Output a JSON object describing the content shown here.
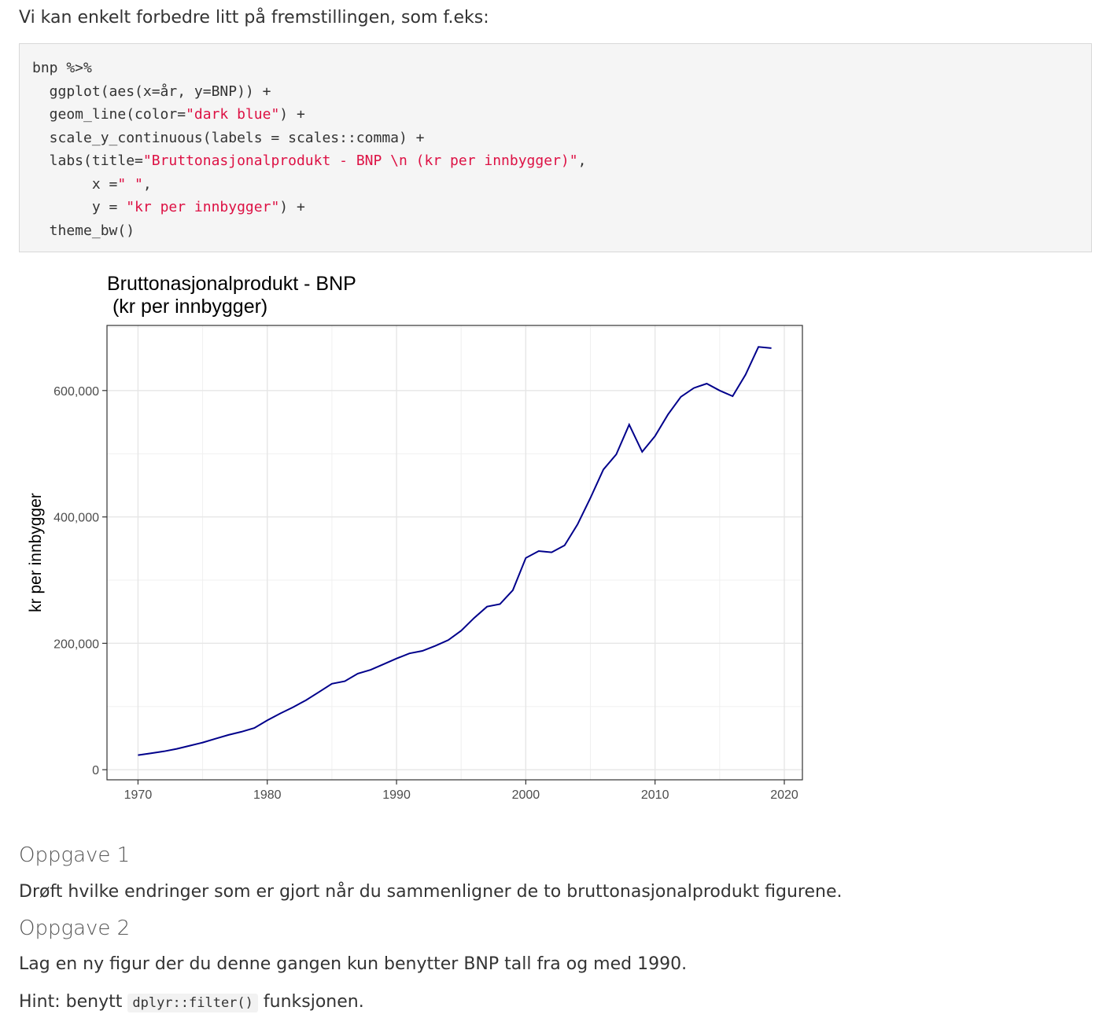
{
  "intro_text": "Vi kan enkelt forbedre litt på fremstillingen, som f.eks:",
  "code": {
    "lines": [
      [
        {
          "t": "bnp %>%",
          "s": false
        }
      ],
      [
        {
          "t": "  ggplot(aes(x=år, y=BNP)) +",
          "s": false
        }
      ],
      [
        {
          "t": "  geom_line(color=",
          "s": false
        },
        {
          "t": "\"dark blue\"",
          "s": true
        },
        {
          "t": ") +",
          "s": false
        }
      ],
      [
        {
          "t": "  scale_y_continuous(labels = scales::comma) +",
          "s": false
        }
      ],
      [
        {
          "t": "  labs(title=",
          "s": false
        },
        {
          "t": "\"Bruttonasjonalprodukt - BNP \\n (kr per innbygger)\"",
          "s": true
        },
        {
          "t": ",",
          "s": false
        }
      ],
      [
        {
          "t": "       x =",
          "s": false
        },
        {
          "t": "\" \"",
          "s": true
        },
        {
          "t": ",",
          "s": false
        }
      ],
      [
        {
          "t": "       y = ",
          "s": false
        },
        {
          "t": "\"kr per innbygger\"",
          "s": true
        },
        {
          "t": ") +",
          "s": false
        }
      ],
      [
        {
          "t": "  theme_bw()",
          "s": false
        }
      ]
    ]
  },
  "chart_data": {
    "type": "line",
    "title": "Bruttonasjonalprodukt - BNP",
    "subtitle": " (kr per innbygger)",
    "xlabel": "",
    "ylabel": "kr per innbygger",
    "xlim": [
      1967.6,
      2021.4
    ],
    "ylim": [
      -16000,
      703000
    ],
    "x_ticks": [
      1970,
      1980,
      1990,
      2000,
      2010,
      2020
    ],
    "x_tick_labels": [
      "1970",
      "1980",
      "1990",
      "2000",
      "2010",
      "2020"
    ],
    "y_ticks": [
      0,
      200000,
      400000,
      600000
    ],
    "y_tick_labels": [
      "0",
      "200,000",
      "400,000",
      "600,000"
    ],
    "grid": true,
    "line_color": "#00008b",
    "x": [
      1970,
      1971,
      1972,
      1973,
      1974,
      1975,
      1976,
      1977,
      1978,
      1979,
      1980,
      1981,
      1982,
      1983,
      1984,
      1985,
      1986,
      1987,
      1988,
      1989,
      1990,
      1991,
      1992,
      1993,
      1994,
      1995,
      1996,
      1997,
      1998,
      1999,
      2000,
      2001,
      2002,
      2003,
      2004,
      2005,
      2006,
      2007,
      2008,
      2009,
      2010,
      2011,
      2012,
      2013,
      2014,
      2015,
      2016,
      2017,
      2018,
      2019
    ],
    "y": [
      23000,
      26000,
      29000,
      33000,
      38000,
      43000,
      49000,
      55000,
      60000,
      66000,
      78000,
      89000,
      99000,
      110000,
      123000,
      136000,
      140000,
      152000,
      158000,
      167000,
      176000,
      184000,
      188000,
      196000,
      205000,
      220000,
      240000,
      258000,
      262000,
      284000,
      335000,
      346000,
      344000,
      355000,
      388000,
      430000,
      475000,
      499000,
      546000,
      503000,
      528000,
      562000,
      590000,
      604000,
      611000,
      600000,
      591000,
      625000,
      669000,
      667000
    ]
  },
  "tasks": [
    {
      "heading": "Oppgave 1",
      "text": "Drøft hvilke endringer som er gjort når du sammenligner de to bruttonasjonalprodukt figurene."
    },
    {
      "heading": "Oppgave 2",
      "text": "Lag en ny figur der du denne gangen kun benytter BNP tall fra og med 1990."
    }
  ],
  "hint": {
    "prefix": "Hint: benytt",
    "code": "dplyr::filter()",
    "suffix": "funksjonen."
  }
}
